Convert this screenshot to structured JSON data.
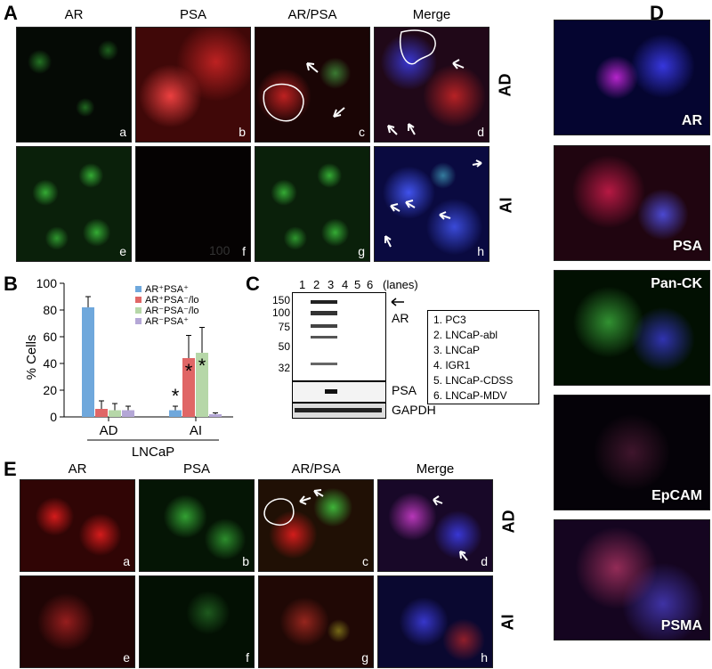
{
  "panel_letters": {
    "A": "A",
    "B": "B",
    "C": "C",
    "D": "D",
    "E": "E"
  },
  "panelA": {
    "columns": [
      "AR",
      "PSA",
      "AR/PSA",
      "Merge"
    ],
    "rows": [
      "AD",
      "AI"
    ],
    "sublabels": [
      "a",
      "b",
      "c",
      "d",
      "e",
      "f",
      "g",
      "h"
    ],
    "faint_text": "100"
  },
  "panelB": {
    "chart_data": {
      "type": "bar",
      "ylabel": "% Cells",
      "xlabel": "LNCaP",
      "categories": [
        "AD",
        "AI"
      ],
      "ylim": [
        0,
        100
      ],
      "yticks": [
        "0",
        "20",
        "40",
        "60",
        "80",
        "100"
      ],
      "legend_placement": "top-right",
      "series": [
        {
          "name": "AR⁺PSA⁺",
          "color": "#6fa8dc",
          "values": [
            82,
            5
          ],
          "errors": [
            8,
            3
          ]
        },
        {
          "name": "AR⁺PSA⁻/lo",
          "color": "#e06666",
          "values": [
            6,
            44
          ],
          "errors": [
            6,
            17
          ]
        },
        {
          "name": "AR⁻PSA⁻/lo",
          "color": "#b6d7a8",
          "values": [
            5,
            48
          ],
          "errors": [
            5,
            19
          ]
        },
        {
          "name": "AR⁻PSA⁺",
          "color": "#b4a7d6",
          "values": [
            5,
            2
          ],
          "errors": [
            3,
            1
          ]
        }
      ],
      "annotations": [
        "*",
        "*",
        "*"
      ]
    }
  },
  "panelC": {
    "lane_numbers": [
      "1",
      "2",
      "3",
      "4",
      "5",
      "6"
    ],
    "lanes_word": "(lanes)",
    "mw_markers": [
      "150",
      "100",
      "75",
      "50",
      "32"
    ],
    "band_labels": [
      "AR",
      "PSA",
      "GAPDH"
    ],
    "lane_key": [
      "1. PC3",
      "2. LNCaP-abl",
      "3. LNCaP",
      "4. IGR1",
      "5. LNCaP-CDSS",
      "6. LNCaP-MDV"
    ]
  },
  "panelD": {
    "labels": [
      "AR",
      "PSA",
      "Pan-CK",
      "EpCAM",
      "PSMA"
    ]
  },
  "panelE": {
    "columns": [
      "AR",
      "PSA",
      "AR/PSA",
      "Merge"
    ],
    "rows": [
      "AD",
      "AI"
    ],
    "sublabels": [
      "a",
      "b",
      "c",
      "d",
      "e",
      "f",
      "g",
      "h"
    ]
  }
}
